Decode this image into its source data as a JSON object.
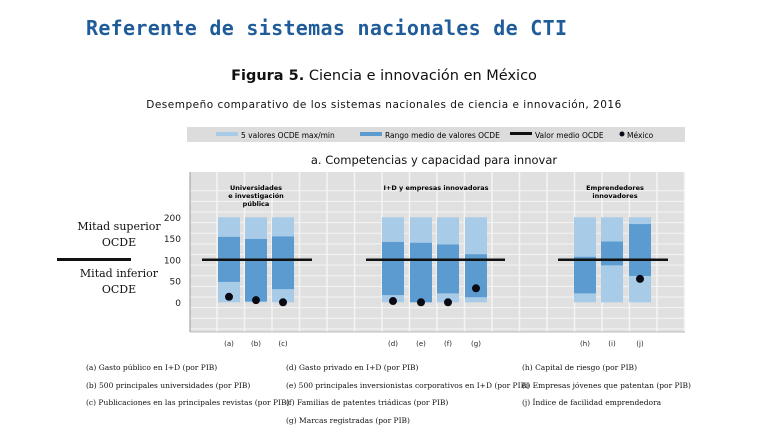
{
  "doc_title": "Referente de sistemas nacionales de CTI",
  "figure": {
    "label": "Figura 5.",
    "title": "Ciencia e innovación en México"
  },
  "subtitle": "Desempeño comparativo de los sistemas nacionales de ciencia e innovación, 2016",
  "side_labels": {
    "upper": [
      "Mitad superior",
      "OCDE"
    ],
    "lower": [
      "Mitad inferior",
      "OCDE"
    ]
  },
  "colors": {
    "range_light": "#a8cbe8",
    "range_dark": "#5b9bd0",
    "mean_line": "#111111",
    "mexico_dot": "#0a0a14",
    "plot_bg": "#e0e0e0",
    "title": "#1f5c99"
  },
  "chart_data": {
    "type": "bar",
    "title": "a. Competencias y capacidad para innovar",
    "legend": {
      "placement": "top",
      "items": [
        "5 valores OCDE max/min",
        "Rango medio de valores OCDE",
        "Valor medio OCDE",
        "México"
      ]
    },
    "y_ticks": [
      0,
      50,
      100,
      150,
      200
    ],
    "ylim": [
      -75,
      275
    ],
    "grid": true,
    "mean_value": 100,
    "groups": [
      {
        "name": [
          "Universidades",
          "e investigación",
          "pública"
        ],
        "categories": [
          "(a)",
          "(b)",
          "(c)"
        ]
      },
      {
        "name": [
          "I+D y empresas innovadoras"
        ],
        "categories": [
          "(d)",
          "(e)",
          "(f)",
          "(g)"
        ]
      },
      {
        "name": [
          "Emprendedores",
          "innovadores"
        ],
        "categories": [
          "(h)",
          "(i)",
          "(j)"
        ]
      }
    ],
    "series": {
      "minmax": [
        [
          0,
          200
        ],
        [
          0,
          200
        ],
        [
          0,
          200
        ],
        [
          0,
          200
        ],
        [
          0,
          200
        ],
        [
          0,
          200
        ],
        [
          0,
          200
        ],
        [
          0,
          200
        ],
        [
          0,
          200
        ],
        [
          0,
          200
        ]
      ],
      "middle_range": [
        [
          48,
          154
        ],
        [
          2,
          149
        ],
        [
          31,
          155
        ],
        [
          17,
          142
        ],
        [
          0,
          140
        ],
        [
          21,
          136
        ],
        [
          12,
          113
        ],
        [
          21,
          107
        ],
        [
          87,
          143
        ],
        [
          62,
          184
        ]
      ],
      "mexico": [
        13,
        5,
        0,
        3,
        0,
        0,
        33,
        null,
        null,
        55
      ]
    }
  },
  "footnotes": [
    [
      "(a)  Gasto público en I+D (por PIB)",
      "(b)  500 principales universidades (por PIB)",
      "(c)  Publicaciones en las principales revistas (por PIB)"
    ],
    [
      "(d)  Gasto privado en I+D (por PIB)",
      "(e)  500 principales inversionistas corporativos en I+D (por PIB)",
      "(f)  Familias de patentes triádicas (por PIB)",
      "(g)  Marcas registradas (por PIB)"
    ],
    [
      "(h)  Capital de riesgo (por PIB)",
      "(i)  Empresas jóvenes que patentan (por PIB)",
      "(j)  Índice de facilidad emprendedora"
    ]
  ]
}
